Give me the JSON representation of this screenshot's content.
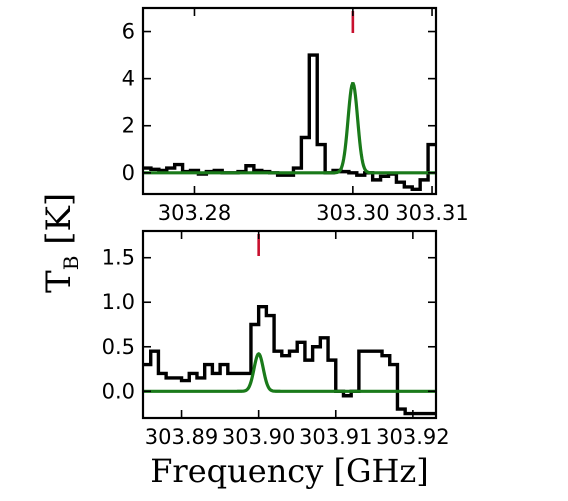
{
  "ylabel_main": "T",
  "ylabel_sub": "B",
  "ylabel_unit": "[K]",
  "xlabel": "Frequency [GHz]",
  "colors": {
    "observed": "#000000",
    "model": "#1a7a1a",
    "marker": "#c8102e"
  },
  "chart_data": [
    {
      "type": "line",
      "xlim": [
        303.2735,
        303.3105
      ],
      "ylim": [
        -0.9,
        7.0
      ],
      "xticks": [
        303.28,
        303.3,
        303.31
      ],
      "xtick_labels": [
        "303.28",
        "303.30",
        "303.31"
      ],
      "yticks": [
        0,
        2,
        4,
        6
      ],
      "ytick_labels": [
        "0",
        "2",
        "4",
        "6"
      ],
      "marker_x": 303.3,
      "series": [
        {
          "style": "steps",
          "color": "#000000",
          "x": [
            303.2735,
            303.2745,
            303.2755,
            303.2765,
            303.2775,
            303.2785,
            303.2795,
            303.2805,
            303.2815,
            303.2825,
            303.2835,
            303.2845,
            303.2855,
            303.2865,
            303.2875,
            303.2885,
            303.2895,
            303.2905,
            303.2915,
            303.2925,
            303.2935,
            303.2945,
            303.2955,
            303.2965,
            303.2975,
            303.2985,
            303.2995,
            303.3005,
            303.3015,
            303.3025,
            303.3035,
            303.3045,
            303.3055,
            303.3065,
            303.3075,
            303.3085,
            303.3095,
            303.3105
          ],
          "y": [
            0.2,
            0.15,
            0.1,
            0.2,
            0.35,
            0.05,
            0.1,
            -0.05,
            0.05,
            0.1,
            0.0,
            0.0,
            0.05,
            0.3,
            0.1,
            0.05,
            0.0,
            -0.1,
            -0.1,
            0.2,
            1.5,
            5.0,
            1.2,
            0.0,
            0.1,
            0.05,
            0.0,
            -0.1,
            0.0,
            -0.3,
            -0.15,
            -0.05,
            -0.4,
            -0.6,
            -0.7,
            -0.3,
            1.2,
            1.2
          ]
        },
        {
          "style": "gaussian",
          "color": "#1a7a1a",
          "center": 303.3,
          "peak": 3.8,
          "sigma": 0.0006,
          "baseline": 0.0
        }
      ]
    },
    {
      "type": "line",
      "xlim": [
        303.885,
        303.923
      ],
      "ylim": [
        -0.3,
        1.8
      ],
      "xticks": [
        303.89,
        303.9,
        303.91,
        303.92
      ],
      "xtick_labels": [
        "303.89",
        "303.90",
        "303.91",
        "303.92"
      ],
      "yticks": [
        0.0,
        0.5,
        1.0,
        1.5
      ],
      "ytick_labels": [
        "0.0",
        "0.5",
        "1.0",
        "1.5"
      ],
      "marker_x": 303.9,
      "series": [
        {
          "style": "steps",
          "color": "#000000",
          "x": [
            303.885,
            303.886,
            303.887,
            303.888,
            303.889,
            303.89,
            303.891,
            303.892,
            303.893,
            303.894,
            303.895,
            303.896,
            303.897,
            303.898,
            303.899,
            303.9,
            303.901,
            303.902,
            303.903,
            303.904,
            303.905,
            303.906,
            303.907,
            303.908,
            303.909,
            303.91,
            303.911,
            303.912,
            303.913,
            303.914,
            303.915,
            303.916,
            303.917,
            303.918,
            303.919,
            303.92,
            303.921,
            303.922,
            303.923
          ],
          "y": [
            0.3,
            0.45,
            0.2,
            0.15,
            0.15,
            0.12,
            0.2,
            0.15,
            0.3,
            0.2,
            0.3,
            0.2,
            0.2,
            0.2,
            0.75,
            0.95,
            0.85,
            0.45,
            0.4,
            0.45,
            0.55,
            0.35,
            0.5,
            0.6,
            0.35,
            0.0,
            -0.05,
            0.0,
            0.45,
            0.45,
            0.45,
            0.4,
            0.3,
            -0.2,
            -0.25,
            -0.25,
            -0.25,
            -0.25,
            -0.25
          ]
        },
        {
          "style": "gaussian",
          "color": "#1a7a1a",
          "center": 303.9,
          "peak": 0.42,
          "sigma": 0.0006,
          "baseline": 0.0
        }
      ]
    }
  ]
}
